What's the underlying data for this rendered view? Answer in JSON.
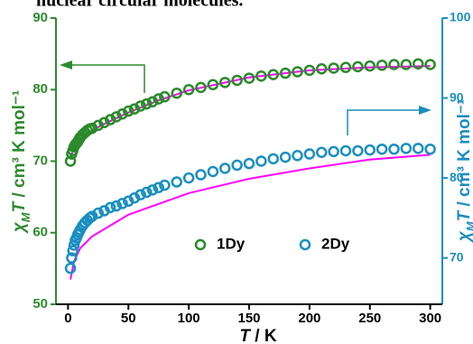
{
  "caption_fragment": "nuclear circular molecules.",
  "chart_data": {
    "type": "scatter",
    "xlabel": [
      "T",
      " / K"
    ],
    "ylabel": [
      "χ",
      "M",
      "T",
      " / cm³ K mol⁻¹"
    ],
    "y2label": [
      "χ",
      "M",
      "T",
      " / cm³ K mol⁻¹"
    ],
    "xlim": [
      -10,
      310
    ],
    "xticks": [
      0,
      50,
      100,
      150,
      200,
      250,
      300
    ],
    "ylim": [
      50,
      90
    ],
    "yticks": [
      50,
      60,
      70,
      80,
      90
    ],
    "y2lim": [
      64.2,
      100
    ],
    "y2ticks": [
      70,
      80,
      90,
      100
    ],
    "ycolor": "#2e8b2e",
    "y2color": "#1a8fc0",
    "legend": "center",
    "x": [
      2,
      3,
      4,
      5,
      6,
      7,
      8,
      9,
      10,
      12,
      14,
      16,
      18,
      20,
      25,
      30,
      35,
      40,
      45,
      50,
      55,
      60,
      65,
      70,
      75,
      80,
      90,
      100,
      110,
      120,
      130,
      140,
      150,
      160,
      170,
      180,
      190,
      200,
      210,
      220,
      230,
      240,
      250,
      260,
      270,
      280,
      290,
      300
    ],
    "series": [
      {
        "name": "1Dy",
        "color": "#2a8a2a",
        "axis": "y",
        "values": [
          70,
          71,
          71.5,
          72,
          72.3,
          72.5,
          72.7,
          73,
          73.3,
          73.7,
          74,
          74.3,
          74.5,
          74.6,
          75,
          75.4,
          75.8,
          76.2,
          76.6,
          77,
          77.3,
          77.7,
          78,
          78.3,
          78.7,
          79,
          79.5,
          80,
          80.3,
          80.7,
          81,
          81.3,
          81.6,
          81.9,
          82.1,
          82.3,
          82.5,
          82.7,
          82.9,
          83,
          83.1,
          83.2,
          83.3,
          83.4,
          83.5,
          83.5,
          83.6,
          83.5
        ]
      },
      {
        "name": "2Dy",
        "color": "#1a8fc0",
        "axis": "y2",
        "values": [
          68.7,
          70.0,
          70.9,
          71.6,
          72.2,
          72.5,
          72.9,
          73.2,
          73.5,
          74.0,
          74.4,
          74.7,
          75.0,
          75.2,
          75.6,
          75.9,
          76.3,
          76.5,
          76.8,
          77.1,
          77.5,
          77.9,
          78.2,
          78.5,
          78.8,
          79.1,
          79.5,
          80.0,
          80.4,
          80.8,
          81.2,
          81.6,
          81.8,
          82.1,
          82.4,
          82.6,
          82.8,
          83.0,
          83.2,
          83.3,
          83.4,
          83.4,
          83.5,
          83.6,
          83.6,
          83.7,
          83.7,
          83.6
        ]
      }
    ],
    "fits": [
      {
        "color": "#ff00ff",
        "axis": "y",
        "x": [
          2,
          5,
          10,
          20,
          30,
          50,
          75,
          100,
          150,
          200,
          250,
          300
        ],
        "values": [
          70.5,
          72,
          73,
          74.3,
          75.2,
          76.8,
          78.5,
          79.9,
          81.7,
          82.7,
          83.1,
          83.3
        ]
      },
      {
        "color": "#ff00ff",
        "axis": "y2",
        "x": [
          2,
          5,
          10,
          20,
          50,
          100,
          150,
          200,
          250,
          300
        ],
        "values": [
          67.3,
          69.6,
          71.2,
          72.7,
          75.4,
          78.1,
          79.9,
          81.2,
          82.3,
          82.9
        ]
      }
    ]
  }
}
